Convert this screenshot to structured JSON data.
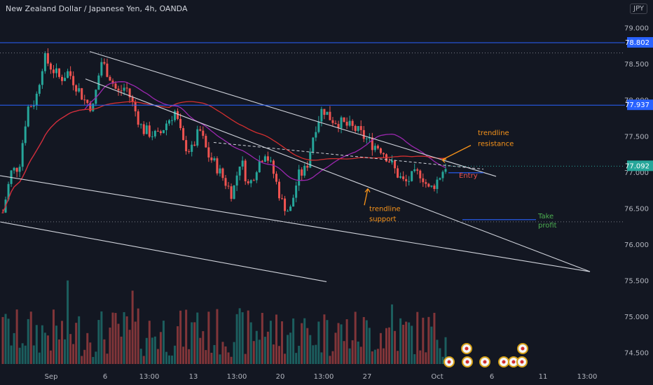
{
  "header": {
    "title": "New Zealand Dollar / Japanese Yen, 4h, OANDA",
    "currency": "JPY"
  },
  "colors": {
    "background": "#131722",
    "up": "#26a69a",
    "down": "#ef5350",
    "ma_fast": "#9c27b0",
    "ma_slow": "#d32f2f",
    "hline": "#2962ff",
    "trendline": "#d1d4dc",
    "annotation_orange": "#f7931a",
    "annotation_green": "#4caf50"
  },
  "chart_data": {
    "type": "candlestick",
    "symbol": "NZDJPY",
    "timeframe": "4h",
    "ylim": [
      74.35,
      79.2
    ],
    "y_ticks": [
      "79.000",
      "78.500",
      "78.000",
      "77.500",
      "77.000",
      "76.500",
      "76.000",
      "75.500",
      "75.000",
      "74.500"
    ],
    "x_ticks": [
      "Sep",
      "6",
      "13:00",
      "13",
      "13:00",
      "20",
      "13:00",
      "27",
      "Oct",
      "6",
      "11",
      "13:00"
    ],
    "price_tags": [
      {
        "label": "78.802",
        "value": 78.802,
        "color": "#2962ff"
      },
      {
        "label": "77.937",
        "value": 77.937,
        "color": "#2962ff"
      },
      {
        "label": "77.092",
        "value": 77.092,
        "color": "#26a69a"
      }
    ],
    "horizontal_levels": [
      78.802,
      77.937
    ],
    "grid": false,
    "annotations": [
      {
        "text": "trendline resistance",
        "color": "#f7931a"
      },
      {
        "text": "trendline support",
        "color": "#f7931a"
      },
      {
        "text": "Entry",
        "color": "#ef5350"
      },
      {
        "text": "Take profit",
        "color": "#4caf50"
      }
    ],
    "annotation_words": {
      "resistance_1": "trendline",
      "resistance_2": "resistance",
      "support_1": "trendline",
      "support_2": "support",
      "entry": "Entry",
      "tp_1": "Take",
      "tp_2": "profit"
    },
    "close_path": [
      76.45,
      77.0,
      77.1,
      77.9,
      78.0,
      78.6,
      78.45,
      78.3,
      78.4,
      78.2,
      78.0,
      77.9,
      78.55,
      78.35,
      78.1,
      78.2,
      77.9,
      77.6,
      77.55,
      77.5,
      77.7,
      77.85,
      77.4,
      77.3,
      77.6,
      77.25,
      77.1,
      76.9,
      76.7,
      77.2,
      76.8,
      77.1,
      77.3,
      77.0,
      76.6,
      76.45,
      76.95,
      77.05,
      77.6,
      77.9,
      77.75,
      77.7,
      77.65,
      77.6,
      77.5,
      77.4,
      77.35,
      77.2,
      77.0,
      76.85,
      76.95,
      77.0,
      76.75,
      76.9,
      77.1
    ]
  }
}
